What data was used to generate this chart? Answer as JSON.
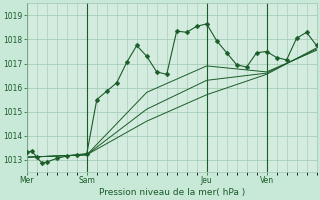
{
  "title": "",
  "xlabel": "Pression niveau de la mer( hPa )",
  "background_color": "#c8e8d8",
  "plot_bg_color": "#d4ece0",
  "grid_color": "#a0c8b0",
  "line_color": "#1a5c28",
  "ylim": [
    1012.5,
    1019.5
  ],
  "day_labels": [
    "Mer",
    "Sam",
    "Jeu",
    "Ven"
  ],
  "day_positions": [
    0,
    6,
    18,
    24
  ],
  "xlim": [
    0,
    29
  ],
  "series1_x": [
    0,
    0.5,
    1,
    1.5,
    2,
    3,
    4,
    5,
    6,
    7,
    8,
    9,
    10,
    11,
    12,
    13,
    14,
    15,
    16,
    17,
    18,
    19,
    20,
    21,
    22,
    23,
    24,
    25,
    26,
    27,
    28,
    29
  ],
  "series1_y": [
    1013.3,
    1013.35,
    1013.1,
    1012.85,
    1012.9,
    1013.05,
    1013.15,
    1013.2,
    1013.25,
    1015.5,
    1015.85,
    1016.2,
    1017.05,
    1017.75,
    1017.3,
    1016.65,
    1016.55,
    1018.35,
    1018.3,
    1018.55,
    1018.65,
    1017.95,
    1017.45,
    1016.95,
    1016.85,
    1017.45,
    1017.5,
    1017.25,
    1017.15,
    1018.05,
    1018.3,
    1017.75
  ],
  "series2_x": [
    0,
    6,
    12,
    18,
    24,
    29
  ],
  "series2_y": [
    1013.1,
    1013.2,
    1015.8,
    1016.9,
    1016.65,
    1017.55
  ],
  "series3_x": [
    0,
    6,
    12,
    18,
    24,
    29
  ],
  "series3_y": [
    1013.1,
    1013.2,
    1015.1,
    1016.3,
    1016.6,
    1017.6
  ],
  "series4_x": [
    0,
    6,
    12,
    18,
    24,
    29
  ],
  "series4_y": [
    1013.1,
    1013.2,
    1014.6,
    1015.7,
    1016.55,
    1017.65
  ]
}
